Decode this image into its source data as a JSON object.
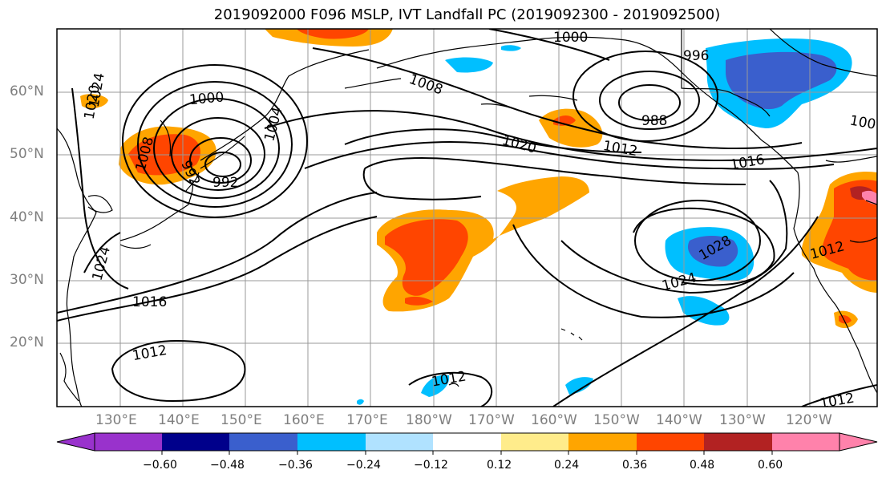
{
  "title": "2019092000 F096 MSLP, IVT Landfall PC (2019092300 - 2019092500)",
  "map": {
    "lat_labels": [
      "60°N",
      "50°N",
      "40°N",
      "30°N",
      "20°N"
    ],
    "lon_labels": [
      "130°E",
      "140°E",
      "150°E",
      "160°E",
      "170°E",
      "180°W",
      "170°W",
      "160°W",
      "150°W",
      "140°W",
      "130°W",
      "120°W"
    ],
    "contour_labels": [
      "1000",
      "996",
      "992",
      "988",
      "1004",
      "1008",
      "1012",
      "1016",
      "1020",
      "1024",
      "1028",
      "1024",
      "1012",
      "1016",
      "1020",
      "1024",
      "1000",
      "1012",
      "1012",
      "1012",
      "1008",
      "992",
      "100"
    ],
    "colors": {
      "land_line": "#000000",
      "contour": "#000000",
      "grid": "#999999"
    }
  },
  "colorbar": {
    "colors": [
      "#9932cc",
      "#00008b",
      "#3a5fcd",
      "#00bfff",
      "#b0e2ff",
      "#ffffff",
      "#ffec8b",
      "#ffa500",
      "#ff4500",
      "#b22222",
      "#ff82ab"
    ],
    "ticks": [
      "−0.60",
      "−0.48",
      "−0.36",
      "−0.24",
      "−0.12",
      "0.12",
      "0.24",
      "0.36",
      "0.48",
      "0.60"
    ]
  }
}
